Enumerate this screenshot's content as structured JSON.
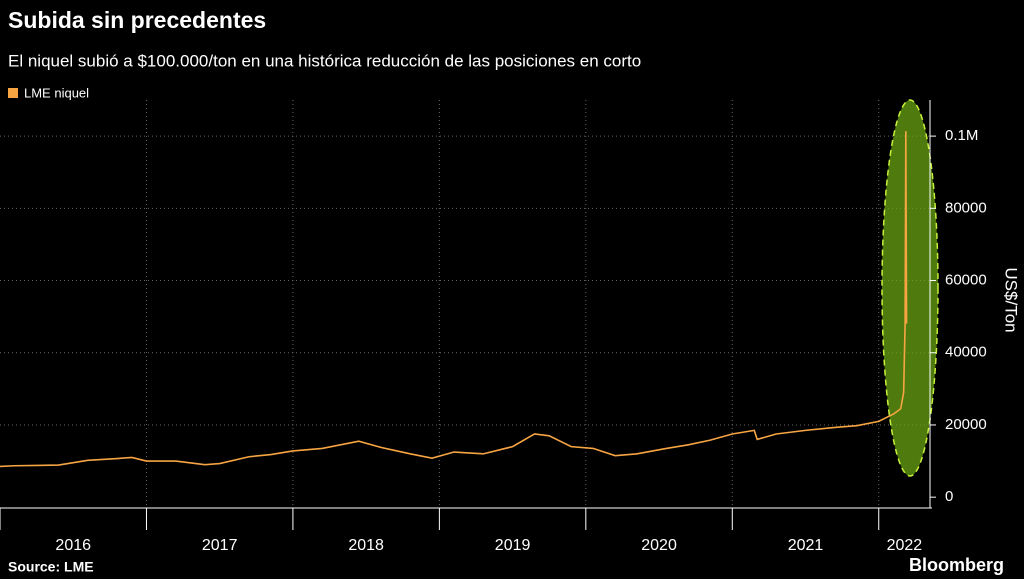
{
  "chart_data": {
    "type": "line",
    "title": "Subida sin precedentes",
    "subtitle": "El niquel subió a $100.000/ton en una histórica reducción de las posiciones en corto",
    "y_label": "US$/Ton",
    "source": "Source: LME",
    "brand": "Bloomberg",
    "x": [
      2016.0,
      2016.1,
      2016.25,
      2016.4,
      2016.6,
      2016.8,
      2016.9,
      2017.0,
      2017.2,
      2017.4,
      2017.5,
      2017.7,
      2017.85,
      2018.0,
      2018.2,
      2018.45,
      2018.6,
      2018.8,
      2018.95,
      2019.1,
      2019.3,
      2019.5,
      2019.65,
      2019.75,
      2019.9,
      2020.05,
      2020.2,
      2020.35,
      2020.55,
      2020.7,
      2020.85,
      2021.0,
      2021.15,
      2021.17,
      2021.3,
      2021.5,
      2021.7,
      2021.85,
      2022.0,
      2022.1,
      2022.15,
      2022.17,
      2022.18,
      2022.185,
      2022.19
    ],
    "series": [
      {
        "name": "LME niquel",
        "color": "#f7a543",
        "values": [
          8500,
          8700,
          8800,
          8900,
          10200,
          10700,
          11000,
          10000,
          10000,
          9000,
          9300,
          11200,
          11800,
          12800,
          13500,
          15500,
          13800,
          12000,
          10800,
          12500,
          12000,
          14000,
          17500,
          17000,
          14000,
          13500,
          11500,
          12000,
          13500,
          14500,
          15800,
          17500,
          18500,
          16000,
          17500,
          18500,
          19300,
          19800,
          21000,
          23000,
          24500,
          29000,
          48000,
          101365,
          48078
        ]
      }
    ],
    "xlim": [
      2016.0,
      2022.35
    ],
    "xticks": [
      {
        "value": 2016,
        "label": "2016"
      },
      {
        "value": 2017,
        "label": "2017"
      },
      {
        "value": 2018,
        "label": "2018"
      },
      {
        "value": 2019,
        "label": "2019"
      },
      {
        "value": 2020,
        "label": "2020"
      },
      {
        "value": 2021,
        "label": "2021"
      },
      {
        "value": 2022,
        "label": "2022"
      }
    ],
    "ylim": [
      -3000,
      110000
    ],
    "yticks": [
      0,
      20000,
      40000,
      60000,
      80000,
      {
        "value": 100000,
        "label": "0.1M"
      }
    ],
    "grid": true
  }
}
